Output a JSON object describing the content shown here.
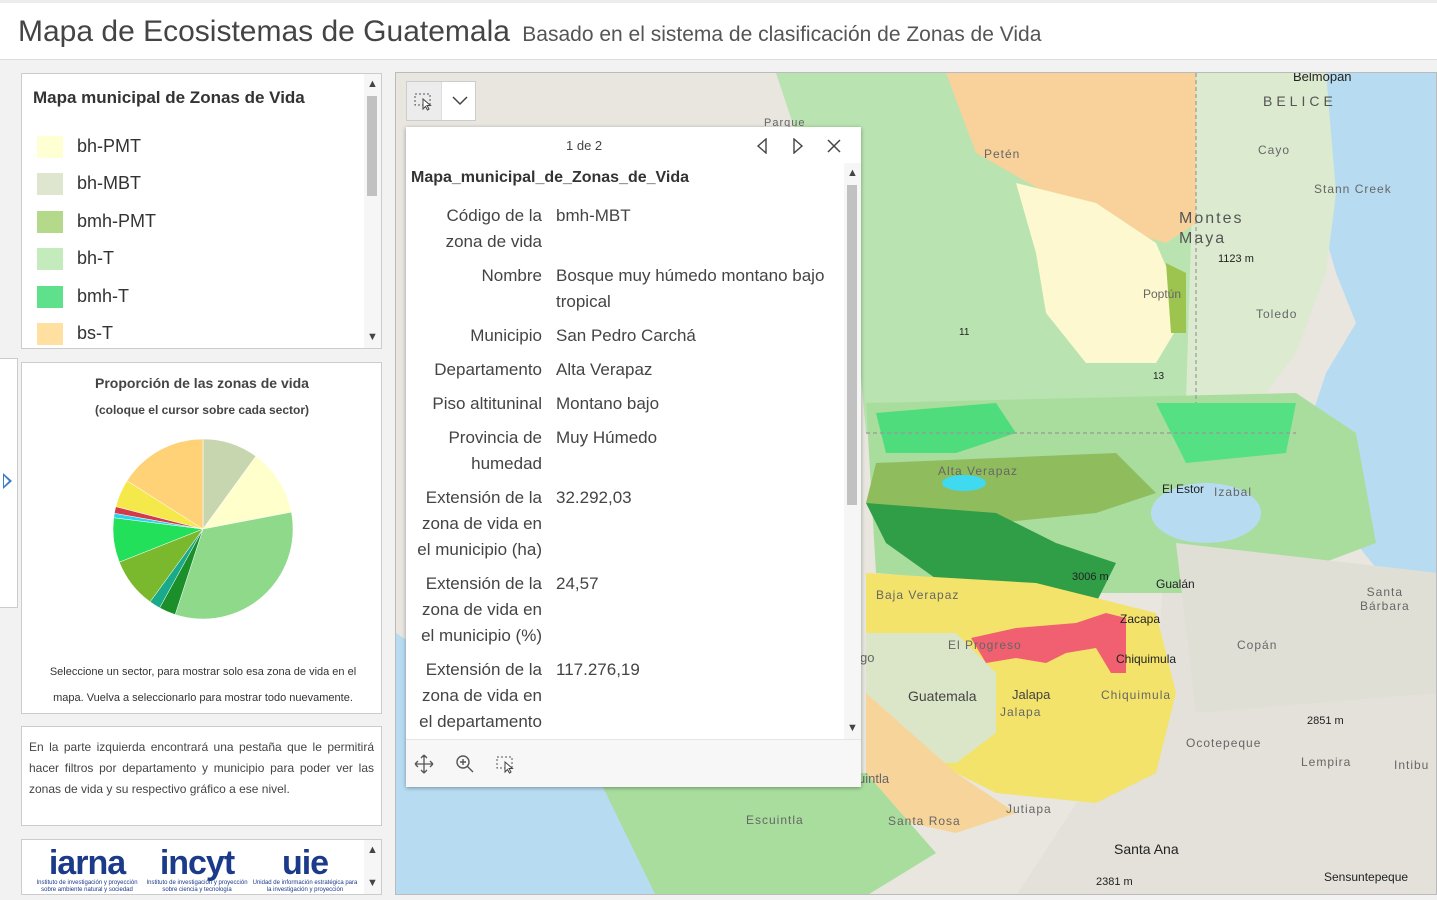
{
  "header": {
    "title": "Mapa de Ecosistemas de Guatemala",
    "subtitle": "Basado en el sistema de clasificación de Zonas de Vida"
  },
  "legend": {
    "title": "Mapa municipal de Zonas de Vida",
    "items": [
      {
        "label": "bh-PMT",
        "color": "#ffffd4"
      },
      {
        "label": "bh-MBT",
        "color": "#dfe6cf"
      },
      {
        "label": "bmh-PMT",
        "color": "#b5d98a"
      },
      {
        "label": "bh-T",
        "color": "#c3ebbb"
      },
      {
        "label": "bmh-T",
        "color": "#5fe08a"
      },
      {
        "label": "bs-T",
        "color": "#ffe0a0"
      }
    ]
  },
  "chart_panel": {
    "title": "Proporción de las zonas de vida",
    "subtitle": "(coloque el cursor sobre cada sector)",
    "note": "Seleccione un sector, para mostrar solo esa zona de vida en el mapa. Vuelva a seleccionarlo para mostrar todo nuevamente."
  },
  "chart_data": {
    "type": "pie",
    "title": "Proporción de las zonas de vida",
    "slices": [
      {
        "value": 0.1,
        "color": "#c8d6b0"
      },
      {
        "value": 0.12,
        "color": "#ffffcc"
      },
      {
        "value": 0.33,
        "color": "#8ed98a"
      },
      {
        "value": 0.03,
        "color": "#1a8f2a"
      },
      {
        "value": 0.02,
        "color": "#1aaa8a"
      },
      {
        "value": 0.09,
        "color": "#7ab82e"
      },
      {
        "value": 0.08,
        "color": "#22e05a"
      },
      {
        "value": 0.008,
        "color": "#2bd3ee"
      },
      {
        "value": 0.012,
        "color": "#d43a4a"
      },
      {
        "value": 0.05,
        "color": "#f5e84a"
      },
      {
        "value": 0.16,
        "color": "#ffd278"
      }
    ]
  },
  "info_text": "En la parte izquierda encontrará una pestaña que le permitirá hacer filtros por departamento y municipio para poder ver las zonas de vida y su respectivo gráfico a ese nivel.",
  "logos": [
    {
      "name": "iarna",
      "caption": "Instituto de investigación y proyección sobre ambiente natural y sociedad"
    },
    {
      "name": "incyt",
      "caption": "Instituto de investigación y proyección sobre ciencia y tecnología"
    },
    {
      "name": "uie",
      "caption": "Unidad de información estratégica para la investigación y proyección"
    }
  ],
  "popup": {
    "count": "1 de 2",
    "layer_title": "Mapa_municipal_de_Zonas_de_Vida",
    "attributes": [
      {
        "key": "Código de la zona de vida",
        "value": "bmh-MBT"
      },
      {
        "key": "Nombre",
        "value": "Bosque muy húmedo montano bajo tropical"
      },
      {
        "key": "Municipio",
        "value": "San Pedro Carchá"
      },
      {
        "key": "Departamento",
        "value": "Alta Verapaz"
      },
      {
        "key": "Piso altituninal",
        "value": "Montano bajo"
      },
      {
        "key": "Provincia de humedad",
        "value": "Muy Húmedo"
      },
      {
        "key": "Extensión de la zona de vida en el municipio (ha)",
        "value": "32.292,03"
      },
      {
        "key": "Extensión de la zona de vida en el municipio (%)",
        "value": "24,57"
      },
      {
        "key": "Extensión de la zona de vida en el departamento",
        "value": "117.276,19"
      }
    ]
  },
  "map_labels": {
    "belmopan": "Belmopan",
    "belice": "BELICE",
    "parque": "Parque",
    "peten": "Petén",
    "cayo": "Cayo",
    "stann_creek": "Stann Creek",
    "montes_maya": "Montes\nMaya",
    "m1123": "1123 m",
    "poptun": "Poptún",
    "toledo": "Toledo",
    "alta_verapaz": "Alta Verapaz",
    "el_estor": "El Estor",
    "izabal": "Izabal",
    "m3006": "3006 m",
    "gualan": "Gualán",
    "santa_barbara": "Santa\nBárbara",
    "baja_verapaz": "Baja Verapaz",
    "zacapa": "Zacapa",
    "el_progreso": "El Progreso",
    "chiquimula_city": "Chiquimula",
    "copan": "Copán",
    "guatemala": "Guatemala",
    "jalapa_city": "Jalapa",
    "jalapa_dept": "Jalapa",
    "chiquimula_dept": "Chiquimula",
    "m2851": "2851 m",
    "ocotepeque": "Ocotepeque",
    "lempira": "Lempira",
    "intibuca": "Intibu",
    "jutiapa": "Jutiapa",
    "escuintla": "Escuintla",
    "santa_rosa": "Santa Rosa",
    "santa_ana": "Santa Ana",
    "m2381": "2381 m",
    "sensuntepeque": "Sensuntepeque",
    "uintla": "uintla",
    "go": "go",
    "r11": "11",
    "r13": "13"
  }
}
